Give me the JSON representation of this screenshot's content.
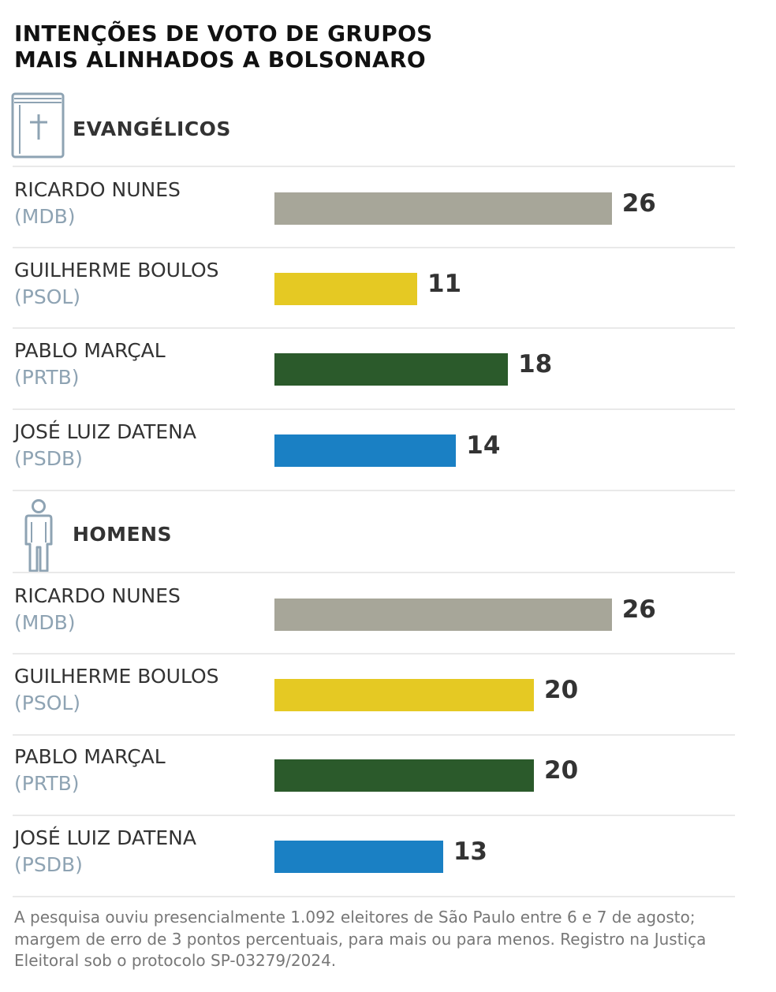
{
  "chart_data": {
    "type": "bar",
    "title_lines": [
      "INTENÇÕES DE VOTO DE GRUPOS",
      "MAIS ALINHADOS A BOLSONARO"
    ],
    "colors": {
      "MDB": "#a7a699",
      "PSOL": "#e5c923",
      "PRTB": "#2b5a2b",
      "PSDB": "#1a80c4"
    },
    "groups": [
      {
        "label": "EVANGÉLICOS",
        "icon": "bible-icon",
        "rows": [
          {
            "name": "RICARDO NUNES",
            "party_label": "(MDB)",
            "party": "MDB",
            "value": 26
          },
          {
            "name": "GUILHERME BOULOS",
            "party_label": "(PSOL)",
            "party": "PSOL",
            "value": 11
          },
          {
            "name": "PABLO MARÇAL",
            "party_label": "(PRTB)",
            "party": "PRTB",
            "value": 18
          },
          {
            "name": "JOSÉ LUIZ DATENA",
            "party_label": "(PSDB)",
            "party": "PSDB",
            "value": 14
          }
        ]
      },
      {
        "label": "HOMENS",
        "icon": "man-icon",
        "rows": [
          {
            "name": "RICARDO NUNES",
            "party_label": "(MDB)",
            "party": "MDB",
            "value": 26
          },
          {
            "name": "GUILHERME BOULOS",
            "party_label": "(PSOL)",
            "party": "PSOL",
            "value": 20
          },
          {
            "name": "PABLO MARÇAL",
            "party_label": "(PRTB)",
            "party": "PRTB",
            "value": 20
          },
          {
            "name": "JOSÉ LUIZ DATENA",
            "party_label": "(PSDB)",
            "party": "PSDB",
            "value": 13
          }
        ]
      }
    ]
  },
  "footnote": "A pesquisa ouviu presencialmente 1.092 eleitores de São Paulo entre 6 e 7 de agosto; margem de erro de 3 pontos percentuais, para mais ou para menos. Registro na Justiça Eleitoral sob o protocolo SP-03279/2024."
}
